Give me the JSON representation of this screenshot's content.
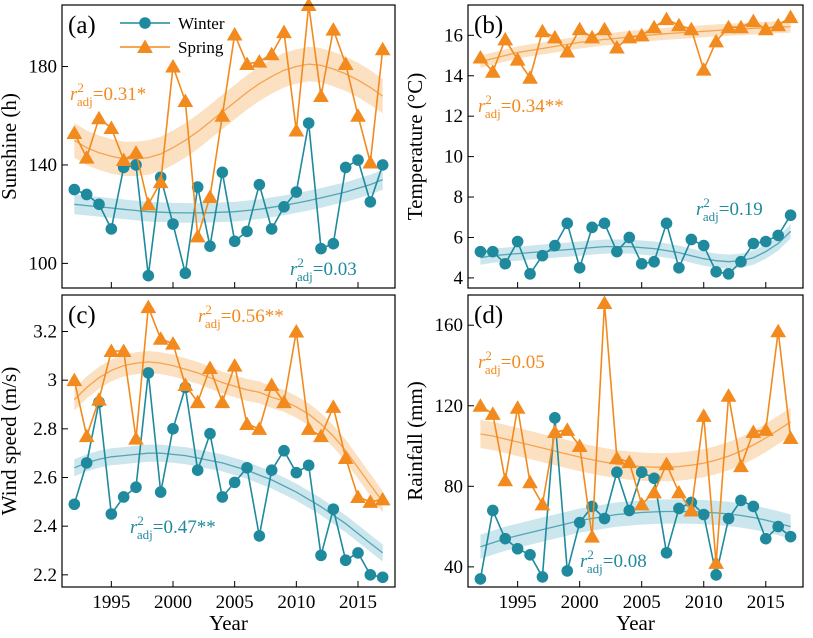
{
  "colors": {
    "winter": "#1f8a9e",
    "spring": "#f28a1e",
    "winter_band": "#b9dde5",
    "spring_band": "#fbd5ad"
  },
  "legend": {
    "winter": "Winter",
    "spring": "Spring"
  },
  "chart_data": [
    {
      "type": "line",
      "panel": "(a)",
      "ylabel": "Sunshine  (h)",
      "xlabel": "",
      "ylim": [
        90,
        205
      ],
      "yticks": [
        100,
        140,
        180
      ],
      "xlim": [
        1991,
        2018
      ],
      "xticks": [
        1995,
        2000,
        2005,
        2010,
        2015
      ],
      "x": [
        1992,
        1993,
        1994,
        1995,
        1996,
        1997,
        1998,
        1999,
        2000,
        2001,
        2002,
        2003,
        2004,
        2005,
        2006,
        2007,
        2008,
        2009,
        2010,
        2011,
        2012,
        2013,
        2014,
        2015,
        2016,
        2017
      ],
      "series": [
        {
          "name": "Winter",
          "values": [
            130,
            128,
            124,
            114,
            139,
            140,
            95,
            135,
            116,
            96,
            131,
            107,
            137,
            109,
            113,
            132,
            114,
            123,
            129,
            157,
            106,
            108,
            139,
            142,
            125,
            140
          ],
          "fit": [
            124,
            123.5,
            123,
            122.5,
            122,
            121.5,
            121,
            120.8,
            120.6,
            120.5,
            120.5,
            120.6,
            120.8,
            121,
            121.5,
            122,
            122.8,
            123.6,
            124.5,
            125.5,
            126.6,
            127.8,
            129,
            130.5,
            132,
            134
          ],
          "fit_band": 4
        },
        {
          "name": "Spring",
          "values": [
            153,
            143,
            159,
            155,
            142,
            145,
            124,
            133,
            180,
            166,
            111,
            127,
            160,
            193,
            181,
            182,
            185,
            194,
            154,
            205,
            168,
            195,
            181,
            160,
            141,
            187
          ],
          "fit": [
            150,
            147,
            145,
            143.5,
            142.5,
            142.5,
            143,
            144.5,
            147,
            150,
            153.5,
            157.5,
            161.5,
            165.5,
            169.5,
            173,
            176,
            178.5,
            180,
            181,
            180.5,
            179,
            177,
            174.5,
            171.5,
            168
          ],
          "fit_band": 7
        }
      ],
      "annotations": [
        {
          "series": "Spring",
          "text": "=0.31*"
        },
        {
          "series": "Winter",
          "text": "=0.03"
        }
      ]
    },
    {
      "type": "line",
      "panel": "(b)",
      "ylabel": "Temperature  (°C)",
      "xlabel": "",
      "ylim": [
        3.5,
        17.5
      ],
      "yticks": [
        4,
        6,
        8,
        10,
        12,
        14,
        16
      ],
      "xlim": [
        1991,
        2018
      ],
      "xticks": [
        1995,
        2000,
        2005,
        2010,
        2015
      ],
      "x": [
        1992,
        1993,
        1994,
        1995,
        1996,
        1997,
        1998,
        1999,
        2000,
        2001,
        2002,
        2003,
        2004,
        2005,
        2006,
        2007,
        2008,
        2009,
        2010,
        2011,
        2012,
        2013,
        2014,
        2015,
        2016,
        2017
      ],
      "series": [
        {
          "name": "Winter",
          "values": [
            5.3,
            5.3,
            4.7,
            5.8,
            4.2,
            5.1,
            5.6,
            6.7,
            4.5,
            6.5,
            6.7,
            5.3,
            6.0,
            4.7,
            4.8,
            6.7,
            4.5,
            5.9,
            5.6,
            4.3,
            4.2,
            4.8,
            5.7,
            5.8,
            6.1,
            7.1
          ],
          "fit": [
            5.0,
            5.1,
            5.15,
            5.2,
            5.25,
            5.3,
            5.35,
            5.4,
            5.45,
            5.5,
            5.55,
            5.55,
            5.55,
            5.5,
            5.45,
            5.35,
            5.25,
            5.1,
            4.95,
            4.85,
            4.8,
            4.85,
            5.0,
            5.3,
            5.7,
            6.3
          ],
          "fit_band": 0.35
        },
        {
          "name": "Spring",
          "values": [
            14.9,
            14.2,
            15.8,
            14.8,
            13.9,
            16.2,
            15.9,
            15.2,
            16.3,
            15.9,
            16.3,
            15.4,
            15.9,
            16.0,
            16.4,
            16.8,
            16.5,
            16.3,
            14.3,
            15.7,
            16.4,
            16.4,
            16.7,
            16.3,
            16.5,
            16.9
          ],
          "fit": [
            14.7,
            14.85,
            15.0,
            15.15,
            15.25,
            15.35,
            15.45,
            15.55,
            15.65,
            15.72,
            15.8,
            15.85,
            15.92,
            15.98,
            16.03,
            16.08,
            16.12,
            16.16,
            16.2,
            16.24,
            16.28,
            16.31,
            16.34,
            16.37,
            16.4,
            16.43
          ],
          "fit_band": 0.3
        }
      ],
      "annotations": [
        {
          "series": "Spring",
          "text": "=0.34**"
        },
        {
          "series": "Winter",
          "text": "=0.19"
        }
      ]
    },
    {
      "type": "line",
      "panel": "(c)",
      "ylabel": "Wind speed  (m/s)",
      "xlabel": "Year",
      "ylim": [
        2.15,
        3.35
      ],
      "yticks": [
        2.2,
        2.4,
        2.6,
        2.8,
        3.0,
        3.2
      ],
      "xlim": [
        1991,
        2018
      ],
      "xticks": [
        1995,
        2000,
        2005,
        2010,
        2015
      ],
      "x": [
        1992,
        1993,
        1994,
        1995,
        1996,
        1997,
        1998,
        1999,
        2000,
        2001,
        2002,
        2003,
        2004,
        2005,
        2006,
        2007,
        2008,
        2009,
        2010,
        2011,
        2012,
        2013,
        2014,
        2015,
        2016,
        2017
      ],
      "series": [
        {
          "name": "Winter",
          "values": [
            2.49,
            2.66,
            2.91,
            2.45,
            2.52,
            2.56,
            3.03,
            2.54,
            2.8,
            2.97,
            2.63,
            2.78,
            2.52,
            2.58,
            2.64,
            2.36,
            2.63,
            2.71,
            2.62,
            2.65,
            2.28,
            2.47,
            2.26,
            2.29,
            2.2,
            2.19
          ],
          "fit": [
            2.64,
            2.66,
            2.675,
            2.685,
            2.69,
            2.695,
            2.7,
            2.7,
            2.695,
            2.69,
            2.68,
            2.67,
            2.66,
            2.645,
            2.63,
            2.61,
            2.59,
            2.565,
            2.54,
            2.51,
            2.48,
            2.445,
            2.41,
            2.37,
            2.33,
            2.29
          ],
          "fit_band": 0.035
        },
        {
          "name": "Spring",
          "values": [
            3.0,
            2.77,
            2.92,
            3.12,
            3.12,
            2.76,
            3.3,
            3.17,
            3.15,
            2.98,
            2.91,
            3.05,
            2.91,
            3.06,
            2.82,
            2.8,
            2.98,
            2.91,
            3.2,
            2.8,
            2.77,
            2.89,
            2.68,
            2.52,
            2.5,
            2.51
          ],
          "fit": [
            2.92,
            2.97,
            3.01,
            3.04,
            3.06,
            3.07,
            3.075,
            3.07,
            3.06,
            3.045,
            3.03,
            3.01,
            2.99,
            2.975,
            2.96,
            2.95,
            2.93,
            2.915,
            2.89,
            2.86,
            2.82,
            2.77,
            2.71,
            2.64,
            2.57,
            2.5
          ],
          "fit_band": 0.045
        }
      ],
      "annotations": [
        {
          "series": "Spring",
          "text": "=0.56**"
        },
        {
          "series": "Winter",
          "text": "=0.47**"
        }
      ]
    },
    {
      "type": "line",
      "panel": "(d)",
      "ylabel": "Rainfall  (mm)",
      "xlabel": "Year",
      "ylim": [
        30,
        175
      ],
      "yticks": [
        40,
        80,
        120,
        160
      ],
      "xlim": [
        1991,
        2018
      ],
      "xticks": [
        1995,
        2000,
        2005,
        2010,
        2015
      ],
      "x": [
        1992,
        1993,
        1994,
        1995,
        1996,
        1997,
        1998,
        1999,
        2000,
        2001,
        2002,
        2003,
        2004,
        2005,
        2006,
        2007,
        2008,
        2009,
        2010,
        2011,
        2012,
        2013,
        2014,
        2015,
        2016,
        2017
      ],
      "series": [
        {
          "name": "Winter",
          "values": [
            34,
            68,
            54,
            49,
            46,
            35,
            114,
            38,
            62,
            70,
            64,
            87,
            68,
            87,
            84,
            47,
            69,
            72,
            66,
            36,
            64,
            73,
            70,
            54,
            60,
            55
          ],
          "fit": [
            50,
            52,
            54,
            55.5,
            57,
            58.5,
            60,
            61.5,
            63,
            64,
            65,
            66,
            66.5,
            67,
            67.3,
            67.5,
            67.5,
            67.4,
            67.2,
            66.8,
            66.3,
            65.5,
            64.5,
            63.2,
            61.7,
            60
          ],
          "fit_band": 6
        },
        {
          "name": "Spring",
          "values": [
            120,
            116,
            83,
            119,
            82,
            71,
            107,
            108,
            100,
            55,
            171,
            94,
            92,
            71,
            77,
            91,
            77,
            68,
            115,
            42,
            125,
            90,
            107,
            108,
            157,
            104
          ],
          "fit": [
            106,
            105,
            103.5,
            102,
            100.5,
            99,
            97.5,
            96,
            94.5,
            93.2,
            92,
            91,
            90.3,
            89.8,
            89.5,
            89.5,
            89.8,
            90.5,
            91.5,
            93,
            95,
            97.5,
            100.5,
            104,
            108,
            112
          ],
          "fit_band": 7
        }
      ],
      "annotations": [
        {
          "series": "Spring",
          "text": "=0.05"
        },
        {
          "series": "Winter",
          "text": "=0.08"
        }
      ]
    }
  ]
}
